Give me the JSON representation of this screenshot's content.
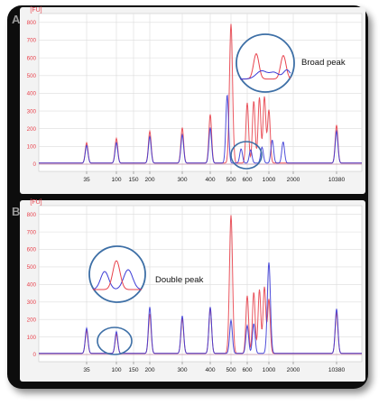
{
  "figure": {
    "colors": {
      "frame": "#0b0b0b",
      "plot_bg": "#ffffff",
      "panel_bg": "#f3f3f3",
      "grid": "#dcdcdc",
      "series_red": "#e8424c",
      "series_blue": "#3b3bd6",
      "circle": "#3d6fa6",
      "axis_text_red": "#e8424c",
      "axis_text": "#222222"
    }
  },
  "chart_data": [
    {
      "type": "line",
      "panel_label": "A",
      "ylabel": "[FU]",
      "ylim": [
        0,
        850
      ],
      "yticks": [
        0,
        100,
        200,
        300,
        400,
        500,
        600,
        700,
        800
      ],
      "xtick_labels": [
        "35",
        "100",
        "150",
        "200",
        "300",
        "400",
        "500",
        "600",
        "1000",
        "2000",
        "10380"
      ],
      "annotation": "Broad peak",
      "series": [
        {
          "color": "red",
          "peaks": [
            {
              "x": "35",
              "y": 115
            },
            {
              "x": "100",
              "y": 140
            },
            {
              "x": "200",
              "y": 180
            },
            {
              "x": "300",
              "y": 200
            },
            {
              "x": "400",
              "y": 275
            },
            {
              "x": "500",
              "y": 785
            },
            {
              "x": "600",
              "y": 340
            },
            {
              "x": "700",
              "y": 350
            },
            {
              "x": "800",
              "y": 370
            },
            {
              "x": "900",
              "y": 375
            },
            {
              "x": "1000",
              "y": 300
            },
            {
              "x": "10380",
              "y": 215
            }
          ]
        },
        {
          "color": "blue",
          "peaks": [
            {
              "x": "35",
              "y": 100
            },
            {
              "x": "100",
              "y": 115
            },
            {
              "x": "200",
              "y": 150
            },
            {
              "x": "300",
              "y": 160
            },
            {
              "x": "400",
              "y": 200
            },
            {
              "x": "480",
              "y": 385
            },
            {
              "x": "560",
              "y": 80
            },
            {
              "x": "650",
              "y": 75
            },
            {
              "x": "850",
              "y": 90
            },
            {
              "x": "1100",
              "y": 130
            },
            {
              "x": "1500",
              "y": 120
            },
            {
              "x": "10380",
              "y": 180
            }
          ]
        }
      ]
    },
    {
      "type": "line",
      "panel_label": "B",
      "ylabel": "[FU]",
      "ylim": [
        0,
        850
      ],
      "yticks": [
        0,
        100,
        200,
        300,
        400,
        500,
        600,
        700,
        800
      ],
      "xtick_labels": [
        "35",
        "100",
        "150",
        "200",
        "300",
        "400",
        "500",
        "600",
        "1000",
        "2000",
        "10380"
      ],
      "annotation": "Double peak",
      "series": [
        {
          "color": "red",
          "peaks": [
            {
              "x": "35",
              "y": 130
            },
            {
              "x": "100",
              "y": 110
            },
            {
              "x": "200",
              "y": 225
            },
            {
              "x": "300",
              "y": 200
            },
            {
              "x": "400",
              "y": 260
            },
            {
              "x": "500",
              "y": 790
            },
            {
              "x": "600",
              "y": 330
            },
            {
              "x": "700",
              "y": 350
            },
            {
              "x": "800",
              "y": 365
            },
            {
              "x": "900",
              "y": 380
            },
            {
              "x": "1000",
              "y": 310
            },
            {
              "x": "10380",
              "y": 235
            }
          ]
        },
        {
          "color": "blue",
          "peaks": [
            {
              "x": "35",
              "y": 145
            },
            {
              "x": "100",
              "y": 125
            },
            {
              "x": "200",
              "y": 265
            },
            {
              "x": "300",
              "y": 215
            },
            {
              "x": "400",
              "y": 265
            },
            {
              "x": "500",
              "y": 190
            },
            {
              "x": "600",
              "y": 160
            },
            {
              "x": "700",
              "y": 170
            },
            {
              "x": "1000",
              "y": 520
            },
            {
              "x": "10380",
              "y": 255
            }
          ]
        }
      ]
    }
  ]
}
